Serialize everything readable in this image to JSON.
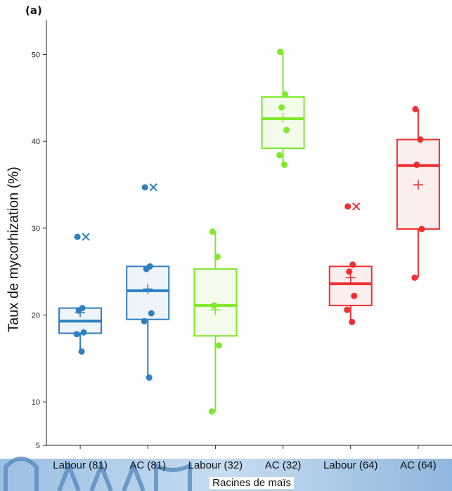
{
  "panel_label": "(a)",
  "chart_data": {
    "type": "box",
    "title": "",
    "xlabel": "Racines de maïs",
    "ylabel": "Taux de mycorhization (%)",
    "ylim": [
      5,
      54
    ],
    "yticks": [
      5,
      10,
      20,
      30,
      40,
      50
    ],
    "grid": false,
    "categories": [
      "Labour (81)",
      "AC (81)",
      "Labour (32)",
      "AC (32)",
      "Labour (64)",
      "AC (64)"
    ],
    "colors": [
      "#2e7fbf",
      "#2e7fbf",
      "#7ee82a",
      "#7ee82a",
      "#ef2f2f",
      "#ef2f2f"
    ],
    "fills": [
      "#eef4fa",
      "#eef4fa",
      "#f3fceb",
      "#f3fceb",
      "#fdeeee",
      "#fdeeee"
    ],
    "boxes": [
      {
        "q1": 17.9,
        "median": 19.3,
        "q3": 20.8,
        "whisker_low": 15.8,
        "whisker_high": 20.8,
        "mean": 20.3,
        "outliers": [
          29.0
        ],
        "points": [
          29.0,
          20.8,
          20.5,
          18.0,
          17.8,
          15.8
        ]
      },
      {
        "q1": 19.5,
        "median": 22.8,
        "q3": 25.6,
        "whisker_low": 12.8,
        "whisker_high": 25.6,
        "mean": 23.0,
        "outliers": [
          34.7
        ],
        "points": [
          34.7,
          25.6,
          25.3,
          20.2,
          19.3,
          12.8
        ]
      },
      {
        "q1": 17.6,
        "median": 21.1,
        "q3": 25.3,
        "whisker_low": 8.9,
        "whisker_high": 29.6,
        "mean": 20.6,
        "outliers": [],
        "points": [
          29.6,
          26.7,
          21.1,
          16.5,
          8.9
        ]
      },
      {
        "q1": 39.2,
        "median": 42.6,
        "q3": 45.1,
        "whisker_low": 37.3,
        "whisker_high": 50.3,
        "mean": 42.7,
        "outliers": [],
        "points": [
          50.3,
          45.4,
          43.9,
          41.3,
          38.4,
          37.3
        ]
      },
      {
        "q1": 21.1,
        "median": 23.6,
        "q3": 25.6,
        "whisker_low": 19.2,
        "whisker_high": 25.6,
        "mean": 24.3,
        "outliers": [
          32.5
        ],
        "points": [
          32.5,
          25.8,
          25.0,
          22.2,
          20.6,
          19.2
        ]
      },
      {
        "q1": 29.9,
        "median": 37.2,
        "q3": 40.2,
        "whisker_low": 24.3,
        "whisker_high": 43.7,
        "mean": 35.0,
        "outliers": [],
        "points": [
          43.7,
          40.2,
          37.3,
          29.9,
          24.3
        ]
      }
    ]
  }
}
